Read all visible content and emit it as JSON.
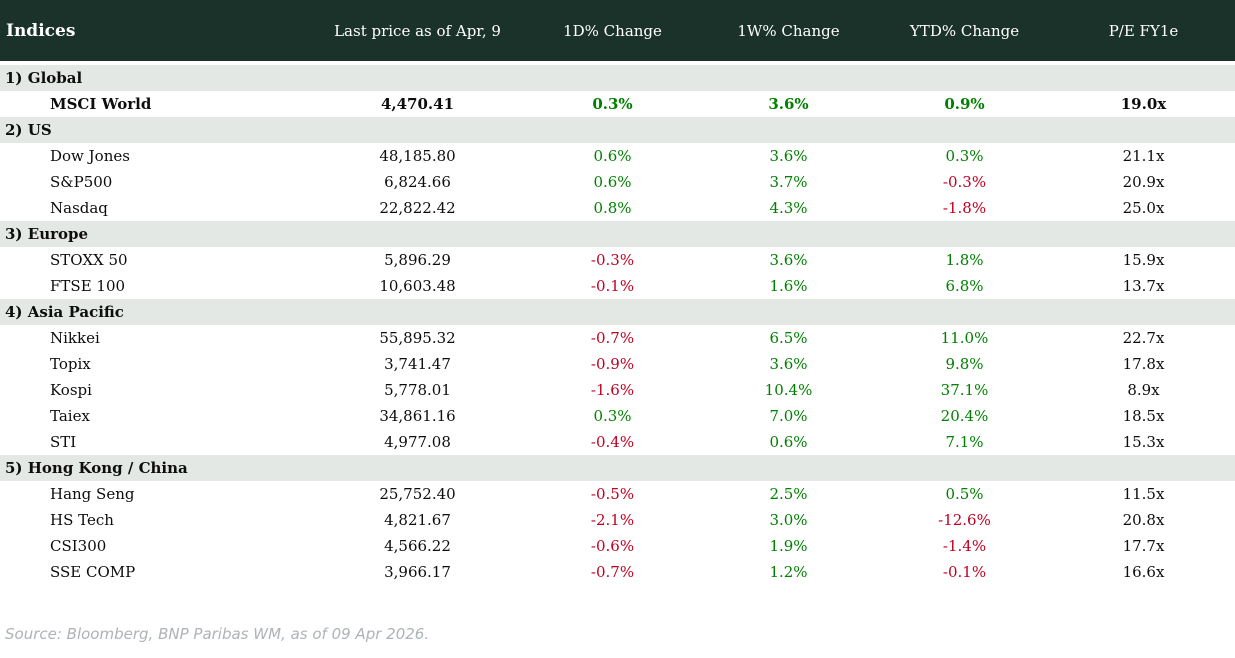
{
  "table": {
    "title": "Indices",
    "columns": {
      "price": "Last price as of Apr, 9",
      "d1": "1D% Change",
      "w1": "1W% Change",
      "ytd": "YTD% Change",
      "pe": "P/E FY1e"
    },
    "sections": [
      {
        "label": "1) Global",
        "rows": [
          {
            "name": "MSCI World",
            "bold": true,
            "price": "4,470.41",
            "d1": "0.3%",
            "w1": "3.6%",
            "ytd": "0.9%",
            "pe": "19.0x"
          }
        ]
      },
      {
        "label": "2) US",
        "rows": [
          {
            "name": "Dow Jones",
            "price": "48,185.80",
            "d1": "0.6%",
            "w1": "3.6%",
            "ytd": "0.3%",
            "pe": "21.1x"
          },
          {
            "name": "S&P500",
            "price": "6,824.66",
            "d1": "0.6%",
            "w1": "3.7%",
            "ytd": "-0.3%",
            "pe": "20.9x"
          },
          {
            "name": "Nasdaq",
            "price": "22,822.42",
            "d1": "0.8%",
            "w1": "4.3%",
            "ytd": "-1.8%",
            "pe": "25.0x"
          }
        ]
      },
      {
        "label": "3) Europe",
        "rows": [
          {
            "name": "STOXX 50",
            "price": "5,896.29",
            "d1": "-0.3%",
            "w1": "3.6%",
            "ytd": "1.8%",
            "pe": "15.9x"
          },
          {
            "name": "FTSE 100",
            "price": "10,603.48",
            "d1": "-0.1%",
            "w1": "1.6%",
            "ytd": "6.8%",
            "pe": "13.7x"
          }
        ]
      },
      {
        "label": "4) Asia Pacific",
        "rows": [
          {
            "name": "Nikkei",
            "price": "55,895.32",
            "d1": "-0.7%",
            "w1": "6.5%",
            "ytd": "11.0%",
            "pe": "22.7x"
          },
          {
            "name": "Topix",
            "price": "3,741.47",
            "d1": "-0.9%",
            "w1": "3.6%",
            "ytd": "9.8%",
            "pe": "17.8x"
          },
          {
            "name": "Kospi",
            "price": "5,778.01",
            "d1": "-1.6%",
            "w1": "10.4%",
            "ytd": "37.1%",
            "pe": "8.9x"
          },
          {
            "name": "Taiex",
            "price": "34,861.16",
            "d1": "0.3%",
            "w1": "7.0%",
            "ytd": "20.4%",
            "pe": "18.5x"
          },
          {
            "name": "STI",
            "price": "4,977.08",
            "d1": "-0.4%",
            "w1": "0.6%",
            "ytd": "7.1%",
            "pe": "15.3x"
          }
        ]
      },
      {
        "label": "5) Hong Kong / China",
        "rows": [
          {
            "name": "Hang Seng",
            "price": "25,752.40",
            "d1": "-0.5%",
            "w1": "2.5%",
            "ytd": "0.5%",
            "pe": "11.5x"
          },
          {
            "name": "HS Tech",
            "price": "4,821.67",
            "d1": "-2.1%",
            "w1": "3.0%",
            "ytd": "-12.6%",
            "pe": "20.8x"
          },
          {
            "name": "CSI300",
            "price": "4,566.22",
            "d1": "-0.6%",
            "w1": "1.9%",
            "ytd": "-1.4%",
            "pe": "17.7x"
          },
          {
            "name": "SSE COMP",
            "price": "3,966.17",
            "d1": "-0.7%",
            "w1": "1.2%",
            "ytd": "-0.1%",
            "pe": "16.6x"
          }
        ]
      }
    ]
  },
  "footer": {
    "source": "Source: Bloomberg, BNP Paribas WM, as of 09 Apr 2026."
  },
  "colors": {
    "header_bg": "#1b322b",
    "section_bg": "#e3e8e4",
    "positive": "#008000",
    "negative": "#c00021",
    "source_text": "#aeb3b6"
  }
}
